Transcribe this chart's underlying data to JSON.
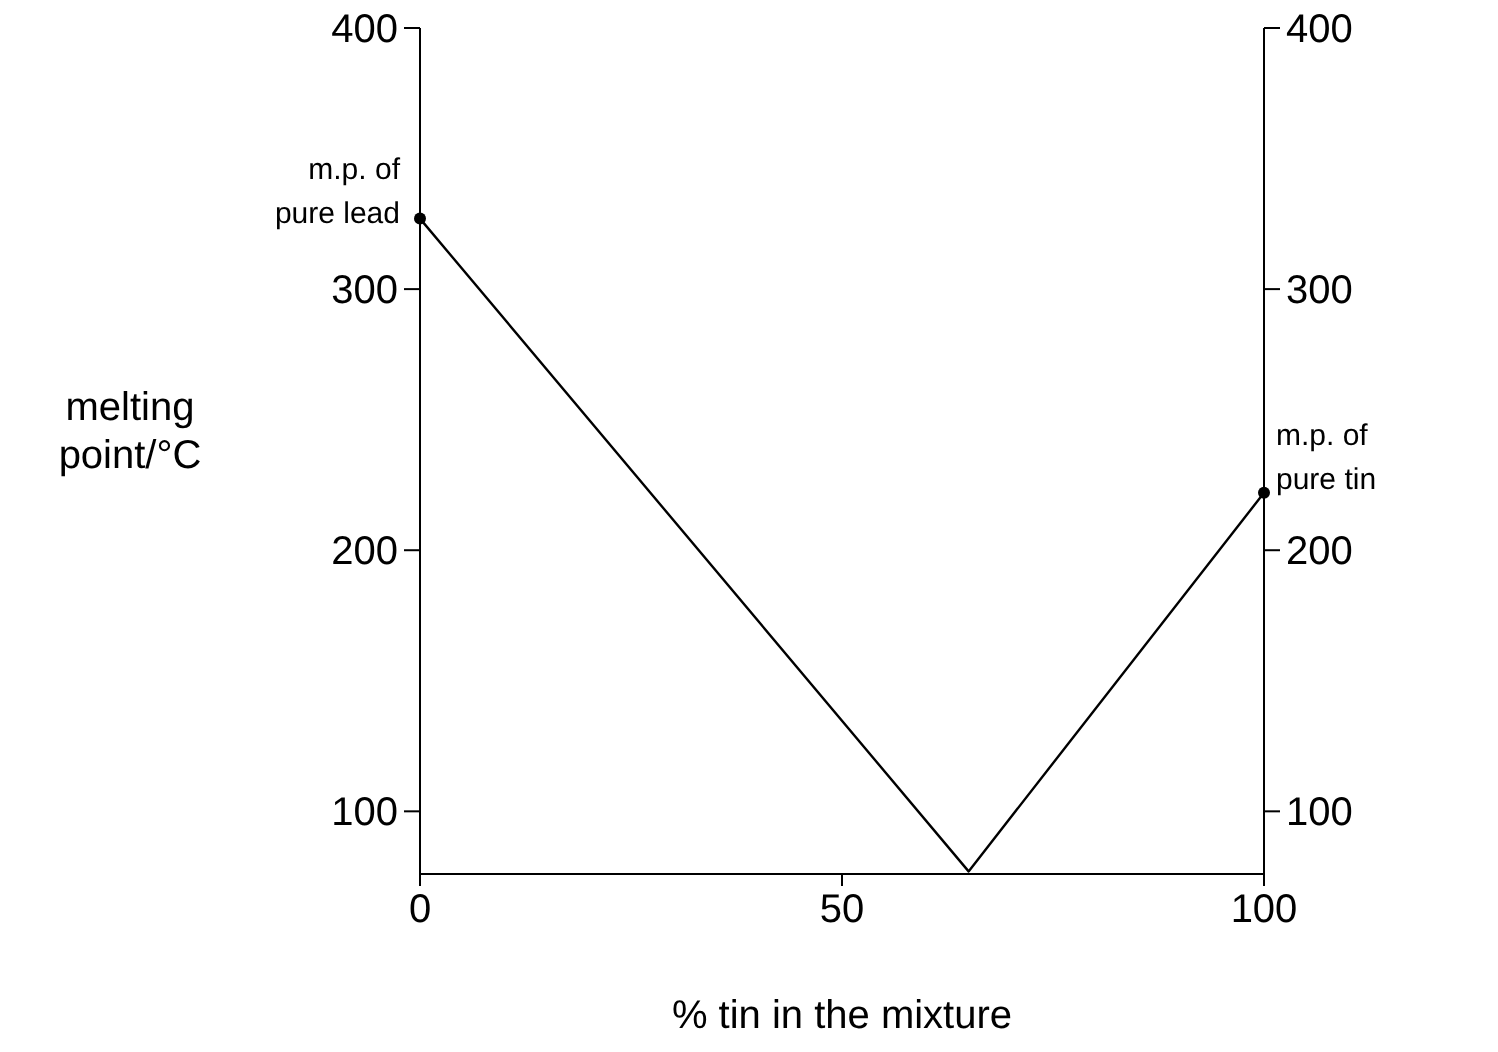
{
  "chart_data": {
    "type": "line",
    "xlabel": "% tin in the mixture",
    "ylabel": "melting\npoint/°C",
    "xlim": [
      0,
      100
    ],
    "xticks": [
      0,
      50,
      100
    ],
    "ylim": [
      76,
      400
    ],
    "yticks": [
      100,
      200,
      300,
      400
    ],
    "y2lim": [
      76,
      400
    ],
    "y2ticks": [
      100,
      200,
      300,
      400
    ],
    "series": [
      {
        "color": "#000000",
        "marker": "none",
        "x": [
          0,
          65,
          100
        ],
        "values": [
          327,
          77,
          222
        ]
      },
      {
        "type": "scatter",
        "color": "#000000",
        "marker": "circle",
        "x": [
          0,
          100
        ],
        "values": [
          327,
          222
        ]
      }
    ],
    "annotations": [
      {
        "text": "m.p. of\npure lead",
        "x": 0,
        "y": 327
      },
      {
        "text": "m.p. of\npure tin",
        "x": 100,
        "y": 222
      }
    ]
  }
}
